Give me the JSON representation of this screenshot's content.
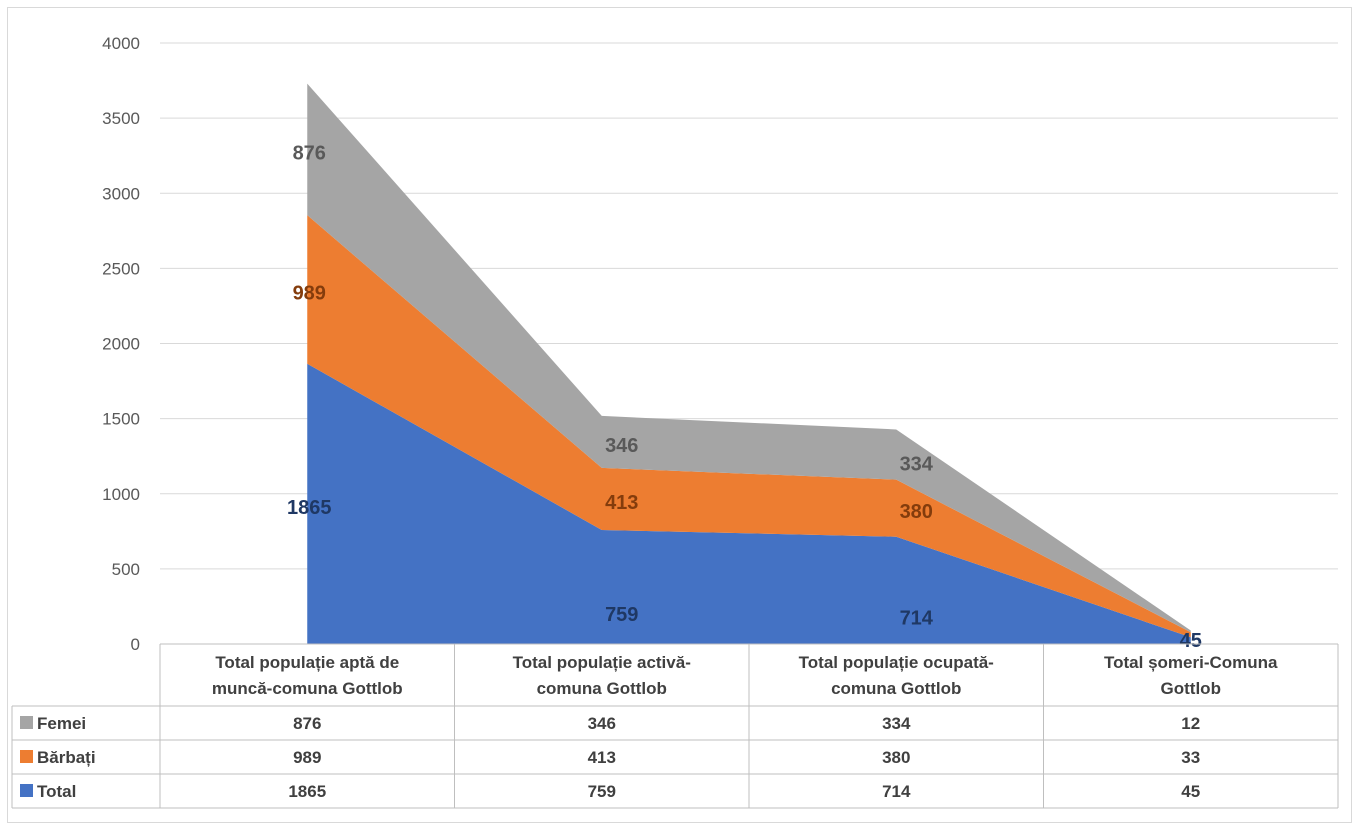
{
  "chart_data": {
    "type": "area",
    "stacked": true,
    "categories": [
      "Total populație aptă de muncă-comuna Gottlob",
      "Total populație activă-comuna Gottlob",
      "Total populație ocupată-comuna Gottlob",
      "Total șomeri-Comuna Gottlob"
    ],
    "category_lines": [
      [
        "Total populație aptă de",
        "muncă-comuna Gottlob"
      ],
      [
        "Total populație activă-",
        "comuna Gottlob"
      ],
      [
        "Total populație ocupată-",
        "comuna Gottlob"
      ],
      [
        "Total șomeri-Comuna",
        "Gottlob"
      ]
    ],
    "series": [
      {
        "name": "Total",
        "values": [
          1865,
          759,
          714,
          45
        ],
        "color": "#4472c4",
        "label_color": "#1f3864"
      },
      {
        "name": "Bărbați",
        "values": [
          989,
          413,
          380,
          33
        ],
        "color": "#ed7d31",
        "label_color": "#843c0c"
      },
      {
        "name": "Femei",
        "values": [
          876,
          346,
          334,
          12
        ],
        "color": "#a5a5a5",
        "label_color": "#595959"
      }
    ],
    "point_labels_shown": [
      true,
      true,
      true,
      false
    ],
    "table_row_order": [
      "Femei",
      "Bărbați",
      "Total"
    ],
    "ylim": [
      0,
      4000
    ],
    "yticks": [
      0,
      500,
      1000,
      1500,
      2000,
      2500,
      3000,
      3500,
      4000
    ],
    "grid": true,
    "legend": "data-table"
  }
}
